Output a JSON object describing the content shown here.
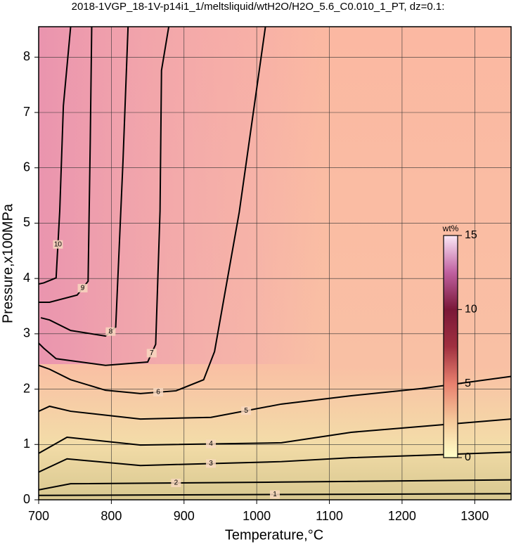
{
  "chart_data": {
    "type": "contour",
    "title": "2018-1VGP_18-1V-p14i1_1/meltsliquid/wtH2O/H2O_5.6_C0.010_1_PT, dz=0.1:",
    "xlabel": "Temperature,°C",
    "ylabel": "Pressure,x100MPa",
    "xlim": [
      700,
      1350
    ],
    "ylim": [
      0,
      8.55
    ],
    "xticks": [
      700,
      800,
      900,
      1000,
      1100,
      1200,
      1300
    ],
    "yticks": [
      0,
      1,
      2,
      3,
      4,
      5,
      6,
      7,
      8
    ],
    "grid": true,
    "contours": [
      {
        "level": 1,
        "x": [
          700,
          1350
        ],
        "y": [
          0.08,
          0.11
        ]
      },
      {
        "level": 2,
        "x": [
          700,
          744,
          1034,
          1350
        ],
        "y": [
          0.18,
          0.29,
          0.32,
          0.36
        ]
      },
      {
        "level": 3,
        "x": [
          700,
          739,
          840,
          1034,
          1130,
          1350
        ],
        "y": [
          0.5,
          0.74,
          0.62,
          0.69,
          0.76,
          0.86
        ]
      },
      {
        "level": 4,
        "x": [
          700,
          739,
          840,
          1034,
          1130,
          1350
        ],
        "y": [
          0.84,
          1.13,
          0.99,
          1.03,
          1.22,
          1.46
        ]
      },
      {
        "level": 5,
        "x": [
          700,
          715,
          744,
          840,
          937,
          1034,
          1130,
          1227,
          1350
        ],
        "y": [
          1.6,
          1.69,
          1.6,
          1.46,
          1.49,
          1.73,
          1.88,
          2.01,
          2.23
        ]
      },
      {
        "level": 6,
        "x": [
          700,
          715,
          744,
          792,
          840,
          889,
          927,
          942,
          976,
          1012
        ],
        "y": [
          2.43,
          2.36,
          2.17,
          1.98,
          1.92,
          1.97,
          2.17,
          2.68,
          5.2,
          8.55
        ]
      },
      {
        "level": 7,
        "x": [
          700,
          707,
          724,
          792,
          850,
          861,
          867,
          869,
          879
        ],
        "y": [
          2.83,
          2.74,
          2.55,
          2.43,
          2.49,
          2.81,
          5.22,
          7.76,
          8.55
        ]
      },
      {
        "level": 8,
        "x": [
          703,
          715,
          744,
          792,
          806,
          816,
          823
        ],
        "y": [
          3.29,
          3.25,
          3.06,
          2.96,
          3.12,
          6.11,
          8.55
        ]
      },
      {
        "level": 9,
        "x": [
          700,
          715,
          753,
          768,
          771,
          773
        ],
        "y": [
          3.57,
          3.57,
          3.7,
          3.95,
          6.49,
          8.55
        ]
      },
      {
        "level": 10,
        "x": [
          700,
          707,
          724,
          729,
          734,
          744
        ],
        "y": [
          3.9,
          3.92,
          4.01,
          5.22,
          7.12,
          8.55
        ]
      }
    ],
    "colorbar": {
      "label": "wt%",
      "lim": [
        0,
        15
      ],
      "ticks": [
        0,
        5,
        10,
        15
      ],
      "colors": [
        "#ffffc8",
        "#f5c89a",
        "#e8806e",
        "#a03040",
        "#7a1838",
        "#c060a0",
        "#fbe8f6"
      ]
    }
  }
}
